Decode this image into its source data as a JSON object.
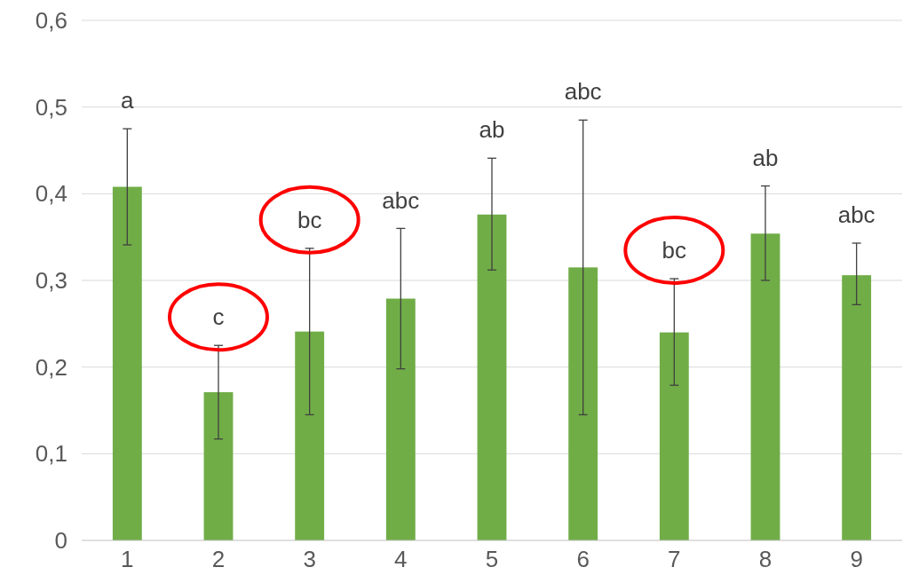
{
  "chart_data": {
    "type": "bar",
    "categories": [
      "1",
      "2",
      "3",
      "4",
      "5",
      "6",
      "7",
      "8",
      "9"
    ],
    "values": [
      0.408,
      0.171,
      0.241,
      0.279,
      0.376,
      0.315,
      0.24,
      0.354,
      0.306
    ],
    "errors": [
      [
        0.341,
        0.475
      ],
      [
        0.117,
        0.225
      ],
      [
        0.145,
        0.337
      ],
      [
        0.198,
        0.36
      ],
      [
        0.312,
        0.441
      ],
      [
        0.145,
        0.485
      ],
      [
        0.179,
        0.302
      ],
      [
        0.3,
        0.409
      ],
      [
        0.272,
        0.343
      ]
    ],
    "color": "#70ad47",
    "ylim": [
      0,
      0.6
    ],
    "yticks": [
      0,
      {
        "value": 0.1,
        "label": "0,1"
      },
      {
        "value": 0.2,
        "label": "0,2"
      },
      {
        "value": 0.3,
        "label": "0,3"
      },
      {
        "value": 0.4,
        "label": "0,4"
      },
      {
        "value": 0.5,
        "label": "0,5"
      },
      {
        "value": 0.6,
        "label": "0,6"
      }
    ],
    "grid": "y",
    "annotations": [
      "a",
      "c",
      "bc",
      "abc",
      "ab",
      "abc",
      "bc",
      "ab",
      "abc"
    ]
  }
}
